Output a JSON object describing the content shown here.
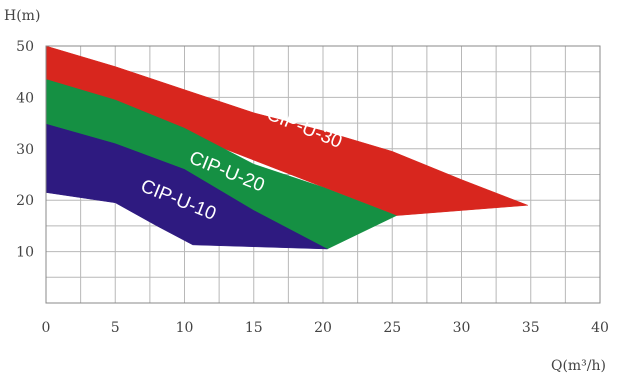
{
  "chart_data": {
    "type": "area",
    "xlabel": "Q(m³/h)",
    "ylabel": "H(m)",
    "xlim": [
      0,
      40
    ],
    "ylim": [
      0,
      50
    ],
    "x_ticks": [
      "0",
      "5",
      "10",
      "15",
      "20",
      "25",
      "30",
      "35",
      "40"
    ],
    "y_ticks": [
      "10",
      "20",
      "30",
      "40",
      "50"
    ],
    "grid": true,
    "x_grid_step": 2.5,
    "y_grid_step": 5,
    "series": [
      {
        "name": "CIP-U-30",
        "color": "#d8261e",
        "upper": [
          [
            0,
            50
          ],
          [
            5,
            46
          ],
          [
            10,
            41.5
          ],
          [
            15,
            37
          ],
          [
            20,
            33.5
          ],
          [
            25,
            29.5
          ],
          [
            30,
            24
          ],
          [
            34.8,
            19
          ]
        ],
        "lower": [
          [
            34.8,
            19
          ],
          [
            25.3,
            17
          ],
          [
            0,
            43.5
          ]
        ]
      },
      {
        "name": "CIP-U-20",
        "color": "#159043",
        "upper": [
          [
            0,
            43.5
          ],
          [
            5,
            39.5
          ],
          [
            10,
            34
          ],
          [
            15,
            27
          ],
          [
            20,
            22.5
          ],
          [
            25.3,
            17
          ]
        ],
        "lower": [
          [
            25.3,
            17
          ],
          [
            20.3,
            10.5
          ],
          [
            0,
            34.8
          ]
        ]
      },
      {
        "name": "CIP-U-10",
        "color": "#2e1a80",
        "upper": [
          [
            0,
            34.8
          ],
          [
            5,
            31
          ],
          [
            10,
            26
          ],
          [
            15,
            18
          ],
          [
            20.3,
            10.5
          ]
        ],
        "lower": [
          [
            20.3,
            10.5
          ],
          [
            10.6,
            11.3
          ],
          [
            8,
            15
          ],
          [
            5,
            19.5
          ],
          [
            0,
            21.5
          ]
        ]
      }
    ],
    "annotations": [
      {
        "text": "CIP-U-30",
        "x": 18.5,
        "y": 33,
        "rotate_deg": 22
      },
      {
        "text": "CIP-U-20",
        "x": 12.9,
        "y": 24.5,
        "rotate_deg": 22
      },
      {
        "text": "CIP-U-10",
        "x": 9.4,
        "y": 19,
        "rotate_deg": 22
      }
    ]
  }
}
